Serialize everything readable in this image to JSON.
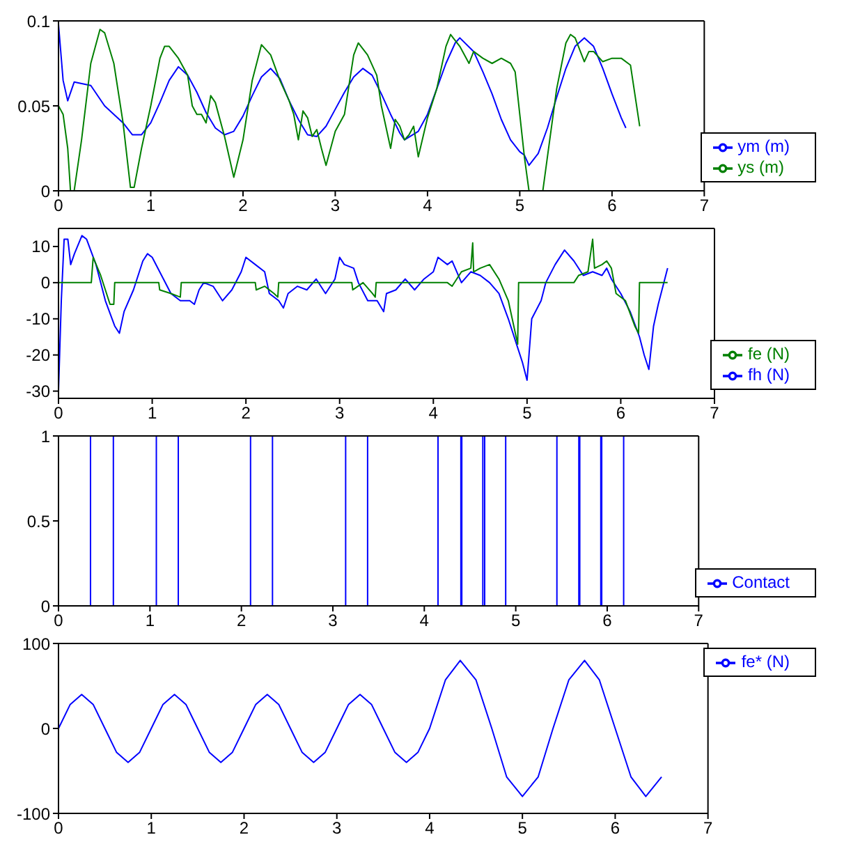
{
  "chart_data": [
    {
      "type": "line",
      "xlim": [
        0,
        7
      ],
      "xticks": [
        0,
        1,
        2,
        3,
        4,
        5,
        6,
        7
      ],
      "ylim": [
        0,
        0.1
      ],
      "yticks": [
        0,
        0.05,
        0.1
      ],
      "legend": "bottom right",
      "series": [
        {
          "name": "ym (m)",
          "color": "#0000ff",
          "x": [
            0,
            0.05,
            0.1,
            0.17,
            0.35,
            0.5,
            0.7,
            0.8,
            0.9,
            1.0,
            1.1,
            1.2,
            1.3,
            1.4,
            1.5,
            1.6,
            1.7,
            1.8,
            1.9,
            2.0,
            2.1,
            2.2,
            2.3,
            2.4,
            2.5,
            2.6,
            2.7,
            2.8,
            2.9,
            3.0,
            3.1,
            3.2,
            3.3,
            3.4,
            3.5,
            3.6,
            3.7,
            3.75,
            3.9,
            4.0,
            4.1,
            4.2,
            4.3,
            4.35,
            4.5,
            4.6,
            4.7,
            4.8,
            4.9,
            5.0,
            5.05,
            5.1,
            5.2,
            5.3,
            5.4,
            5.5,
            5.6,
            5.7,
            5.8,
            5.9,
            6.0,
            6.1,
            6.15
          ],
          "values": [
            0.098,
            0.065,
            0.053,
            0.064,
            0.062,
            0.05,
            0.04,
            0.033,
            0.033,
            0.04,
            0.052,
            0.065,
            0.073,
            0.068,
            0.058,
            0.046,
            0.037,
            0.033,
            0.035,
            0.044,
            0.056,
            0.067,
            0.072,
            0.066,
            0.053,
            0.042,
            0.033,
            0.032,
            0.038,
            0.048,
            0.058,
            0.067,
            0.072,
            0.068,
            0.057,
            0.045,
            0.034,
            0.03,
            0.035,
            0.045,
            0.06,
            0.075,
            0.087,
            0.09,
            0.082,
            0.07,
            0.057,
            0.042,
            0.03,
            0.023,
            0.021,
            0.015,
            0.022,
            0.037,
            0.055,
            0.072,
            0.085,
            0.09,
            0.085,
            0.072,
            0.057,
            0.043,
            0.037
          ]
        },
        {
          "name": "ys (m)",
          "color": "#008000",
          "x": [
            0,
            0.05,
            0.1,
            0.13,
            0.17,
            0.25,
            0.35,
            0.45,
            0.5,
            0.6,
            0.7,
            0.78,
            0.82,
            0.9,
            1.0,
            1.1,
            1.15,
            1.2,
            1.3,
            1.4,
            1.45,
            1.5,
            1.55,
            1.6,
            1.65,
            1.7,
            1.8,
            1.85,
            1.9,
            2.0,
            2.1,
            2.2,
            2.3,
            2.4,
            2.5,
            2.55,
            2.6,
            2.65,
            2.7,
            2.75,
            2.8,
            2.85,
            2.9,
            3.0,
            3.1,
            3.2,
            3.25,
            3.35,
            3.45,
            3.5,
            3.6,
            3.65,
            3.7,
            3.75,
            3.8,
            3.85,
            3.9,
            4.0,
            4.1,
            4.2,
            4.25,
            4.35,
            4.45,
            4.5,
            4.6,
            4.7,
            4.8,
            4.9,
            4.95,
            5.0,
            5.05,
            5.1,
            5.25,
            5.3,
            5.4,
            5.5,
            5.55,
            5.6,
            5.7,
            5.75,
            5.8,
            5.9,
            6.0,
            6.1,
            6.2,
            6.3
          ],
          "values": [
            0.05,
            0.045,
            0.025,
            0,
            0,
            0.03,
            0.075,
            0.095,
            0.093,
            0.075,
            0.04,
            0.002,
            0.002,
            0.025,
            0.05,
            0.078,
            0.085,
            0.085,
            0.078,
            0.068,
            0.05,
            0.045,
            0.045,
            0.04,
            0.056,
            0.052,
            0.032,
            0.02,
            0.008,
            0.03,
            0.065,
            0.086,
            0.08,
            0.065,
            0.053,
            0.045,
            0.03,
            0.047,
            0.043,
            0.032,
            0.036,
            0.025,
            0.015,
            0.035,
            0.045,
            0.08,
            0.087,
            0.08,
            0.068,
            0.05,
            0.025,
            0.042,
            0.038,
            0.03,
            0.033,
            0.038,
            0.02,
            0.043,
            0.06,
            0.085,
            0.092,
            0.085,
            0.075,
            0.082,
            0.078,
            0.075,
            0.078,
            0.075,
            0.07,
            0.045,
            0.02,
            0,
            0,
            0.02,
            0.06,
            0.087,
            0.092,
            0.09,
            0.076,
            0.082,
            0.082,
            0.076,
            0.078,
            0.078,
            0.074,
            0.038
          ]
        }
      ]
    },
    {
      "type": "line",
      "xlim": [
        0,
        7
      ],
      "xticks": [
        0,
        1,
        2,
        3,
        4,
        5,
        6,
        7
      ],
      "ylim": [
        -32,
        15
      ],
      "yticks": [
        -30,
        -20,
        -10,
        0,
        10
      ],
      "legend": "bottom right",
      "series": [
        {
          "name": "fh (N)",
          "color": "#0000ff",
          "x": [
            0,
            0.03,
            0.06,
            0.1,
            0.13,
            0.17,
            0.25,
            0.3,
            0.4,
            0.45,
            0.5,
            0.6,
            0.65,
            0.7,
            0.8,
            0.9,
            0.95,
            1.0,
            1.1,
            1.2,
            1.3,
            1.4,
            1.45,
            1.5,
            1.55,
            1.65,
            1.75,
            1.85,
            1.95,
            2.0,
            2.1,
            2.2,
            2.25,
            2.35,
            2.4,
            2.45,
            2.55,
            2.65,
            2.75,
            2.85,
            2.95,
            3.0,
            3.05,
            3.15,
            3.2,
            3.3,
            3.4,
            3.47,
            3.5,
            3.6,
            3.7,
            3.8,
            3.9,
            4.0,
            4.05,
            4.15,
            4.2,
            4.3,
            4.4,
            4.5,
            4.6,
            4.7,
            4.8,
            4.9,
            4.95,
            5.0,
            5.05,
            5.15,
            5.2,
            5.3,
            5.4,
            5.5,
            5.6,
            5.7,
            5.8,
            5.85,
            5.9,
            6.0,
            6.1,
            6.2,
            6.25,
            6.3,
            6.35,
            6.4,
            6.5
          ],
          "values": [
            -30,
            -5,
            12,
            12,
            5,
            8,
            13,
            12,
            5,
            0,
            -5,
            -12,
            -14,
            -8,
            -2,
            6,
            8,
            7,
            2,
            -3,
            -5,
            -5,
            -6,
            -2,
            0,
            -1,
            -5,
            -2,
            3,
            7,
            5,
            3,
            -3,
            -5,
            -7,
            -3,
            -1,
            -2,
            1,
            -3,
            1,
            7,
            5,
            4,
            0,
            -5,
            -5,
            -8,
            -3,
            -2,
            1,
            -2,
            1,
            3,
            7,
            5,
            6,
            0,
            3,
            2,
            0,
            -3,
            -10,
            -18,
            -22,
            -27,
            -10,
            -5,
            0,
            5,
            9,
            6,
            2,
            3,
            2,
            4,
            1,
            -3,
            -8,
            -15,
            -20,
            -24,
            -12,
            -6,
            4
          ]
        },
        {
          "name": "fe (N)",
          "color": "#008000",
          "x": [
            0,
            0.35,
            0.37,
            0.45,
            0.55,
            0.59,
            0.6,
            1.07,
            1.08,
            1.2,
            1.3,
            1.31,
            2.1,
            2.11,
            2.2,
            2.3,
            2.34,
            2.35,
            3.13,
            3.14,
            3.25,
            3.35,
            3.38,
            3.39,
            4.15,
            4.2,
            4.3,
            4.4,
            4.42,
            4.43,
            4.5,
            4.6,
            4.7,
            4.8,
            4.9,
            4.91,
            5.5,
            5.55,
            5.65,
            5.7,
            5.72,
            5.8,
            5.85,
            5.9,
            5.95,
            6.05,
            6.15,
            6.19,
            6.2,
            6.5
          ],
          "values": [
            0,
            0,
            7,
            2,
            -6,
            -6,
            0,
            0,
            -2,
            -3,
            -4,
            0,
            0,
            -2,
            -1,
            -3,
            -4,
            0,
            0,
            -2,
            0,
            -3,
            -4,
            0,
            0,
            -1,
            3,
            4,
            11,
            3,
            4,
            5,
            1,
            -5,
            -17,
            0,
            0,
            2,
            3,
            12,
            4,
            5,
            6,
            4,
            -3,
            -5,
            -12,
            -14,
            0,
            0
          ]
        }
      ]
    },
    {
      "type": "step",
      "xlim": [
        0,
        7
      ],
      "xticks": [
        0,
        1,
        2,
        3,
        4,
        5,
        6,
        7
      ],
      "ylim": [
        0,
        1
      ],
      "yticks": [
        0,
        0.5,
        1
      ],
      "legend": "bottom right",
      "series": [
        {
          "name": "Contact",
          "color": "#0000ff",
          "x": [
            0,
            0.35,
            0.6,
            1.07,
            1.31,
            2.1,
            2.34,
            3.14,
            3.38,
            4.15,
            4.4,
            4.41,
            4.64,
            4.66,
            4.89,
            5.45,
            5.69,
            5.7,
            5.93,
            5.94,
            6.18,
            6.5
          ],
          "values": [
            0,
            1,
            0,
            1,
            0,
            1,
            0,
            1,
            0,
            1,
            0,
            1,
            0,
            1,
            0,
            1,
            0,
            1,
            0,
            1,
            0,
            0
          ]
        }
      ]
    },
    {
      "type": "line",
      "xlim": [
        0,
        7
      ],
      "xticks": [
        0,
        1,
        2,
        3,
        4,
        5,
        6,
        7
      ],
      "ylim": [
        -100,
        100
      ],
      "yticks": [
        -100,
        0,
        100
      ],
      "legend": "top right",
      "series": [
        {
          "name": "fe* (N)",
          "color": "#0000ff",
          "x": [
            0,
            0.125,
            0.25,
            0.375,
            0.5,
            0.625,
            0.75,
            0.875,
            1,
            1.125,
            1.25,
            1.375,
            1.5,
            1.625,
            1.75,
            1.875,
            2,
            2.125,
            2.25,
            2.375,
            2.5,
            2.625,
            2.75,
            2.875,
            3,
            3.125,
            3.25,
            3.375,
            3.5,
            3.625,
            3.75,
            3.875,
            4,
            4.17,
            4.33,
            4.5,
            4.67,
            4.83,
            5,
            5.17,
            5.33,
            5.5,
            5.67,
            5.83,
            6,
            6.17,
            6.33,
            6.5
          ],
          "values": [
            0,
            28,
            40,
            28,
            0,
            -28,
            -40,
            -28,
            0,
            28,
            40,
            28,
            0,
            -28,
            -40,
            -28,
            0,
            28,
            40,
            28,
            0,
            -28,
            -40,
            -28,
            0,
            28,
            40,
            28,
            0,
            -28,
            -40,
            -28,
            0,
            57,
            80,
            57,
            0,
            -57,
            -80,
            -57,
            0,
            57,
            80,
            57,
            0,
            -57,
            -80,
            -57
          ]
        }
      ]
    }
  ]
}
